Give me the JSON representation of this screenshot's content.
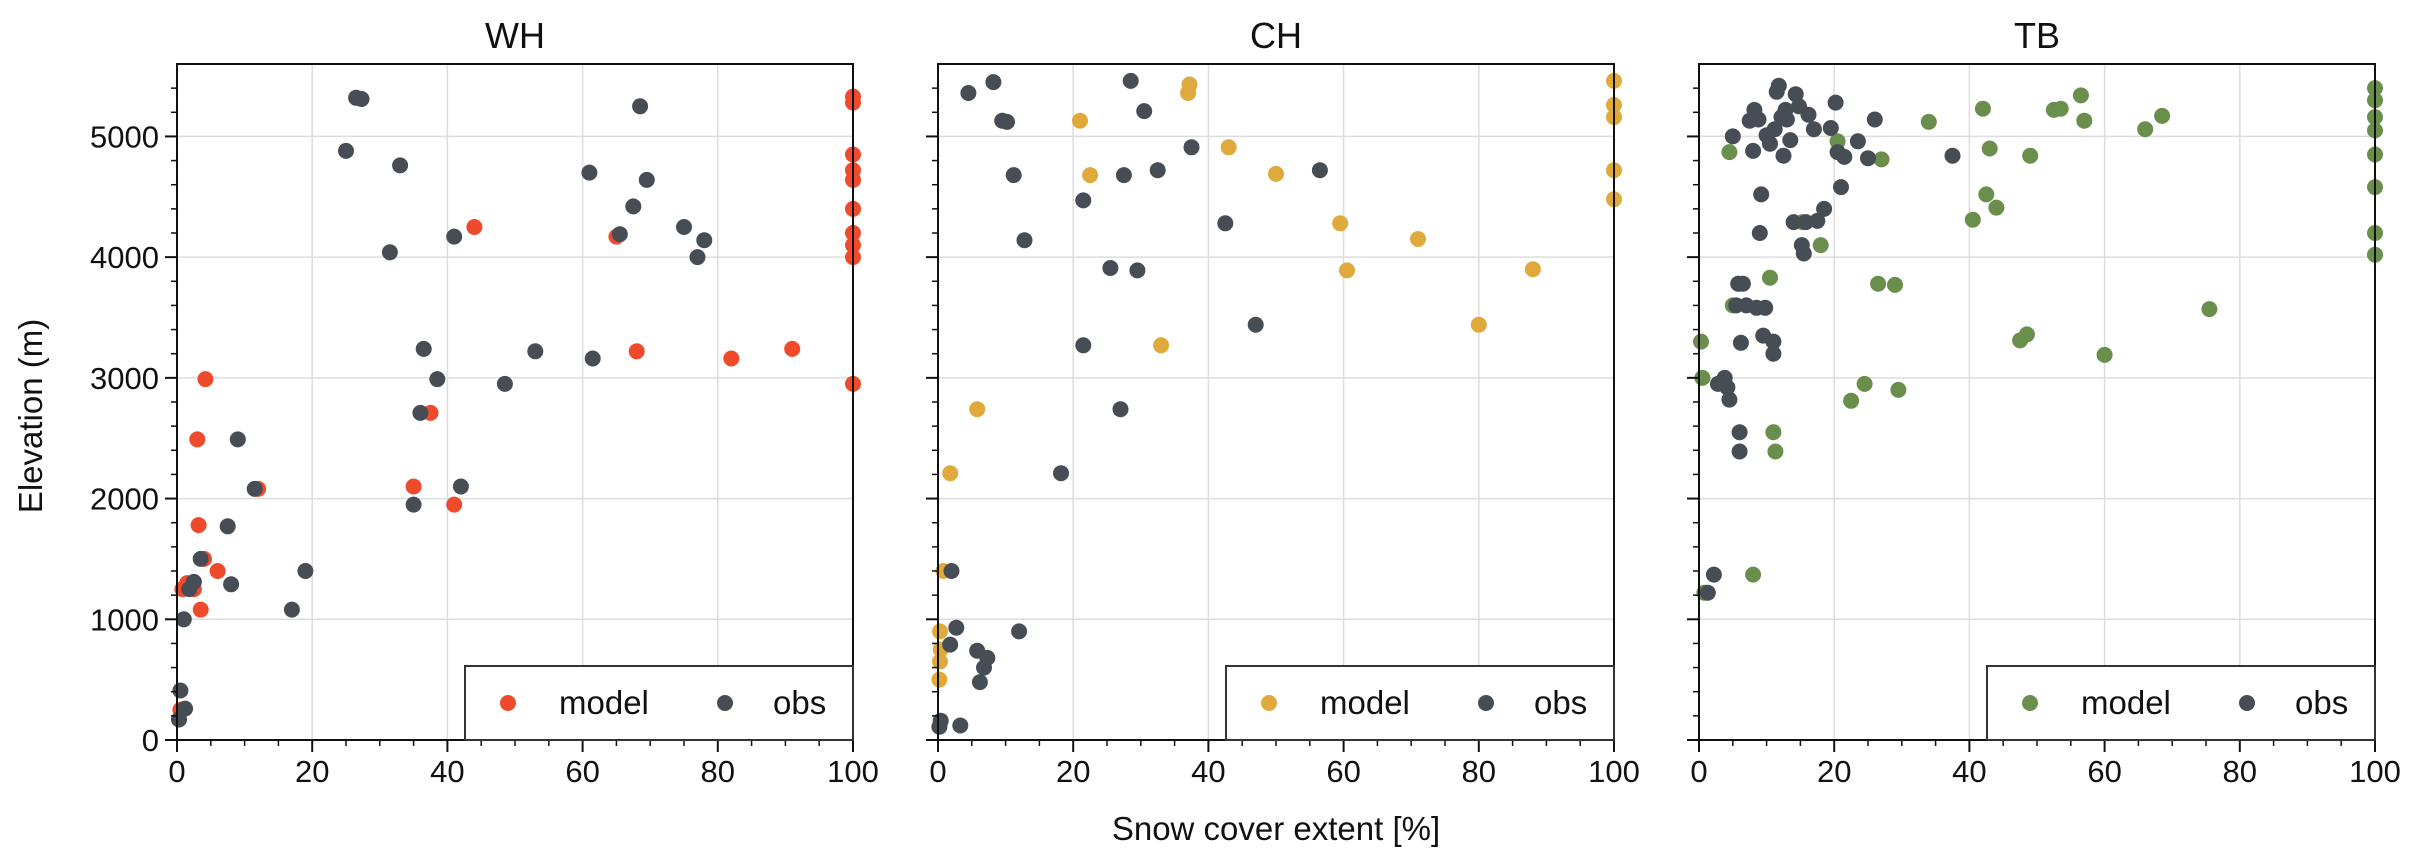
{
  "figure": {
    "xlabel": "Snow cover extent [%]",
    "ylabel": "Elevation (m)"
  },
  "legend": {
    "model_label": "model",
    "obs_label": "obs"
  },
  "colors": {
    "obs": "#474d55",
    "WH_model": "#f04a2c",
    "CH_model": "#e0a93b",
    "TB_model": "#6a8f4c",
    "grid": "#dddddd",
    "axis": "#111111"
  },
  "chart_data": [
    {
      "type": "scatter",
      "title": "WH",
      "xlim": [
        0,
        100
      ],
      "ylim": [
        0,
        5600
      ],
      "xticks": [
        0,
        20,
        40,
        60,
        80,
        100
      ],
      "yticks": [
        0,
        1000,
        2000,
        3000,
        4000,
        5000
      ],
      "grid": true,
      "legend_position": "lower-right",
      "series": [
        {
          "name": "model",
          "color": "#f04a2c",
          "points": [
            [
              0.5,
              250
            ],
            [
              0.8,
              1250
            ],
            [
              1.5,
              1300
            ],
            [
              2.5,
              1250
            ],
            [
              3.2,
              1780
            ],
            [
              3,
              2490
            ],
            [
              3.5,
              1080
            ],
            [
              4,
              1500
            ],
            [
              4.2,
              2990
            ],
            [
              6,
              1400
            ],
            [
              12,
              2080
            ],
            [
              35,
              2100
            ],
            [
              37.5,
              2710
            ],
            [
              41,
              1950
            ],
            [
              44,
              4250
            ],
            [
              65,
              4170
            ],
            [
              68,
              3220
            ],
            [
              82,
              3160
            ],
            [
              91,
              3240
            ],
            [
              100,
              5330
            ],
            [
              100,
              5280
            ],
            [
              100,
              4850
            ],
            [
              100,
              4720
            ],
            [
              100,
              4640
            ],
            [
              100,
              4400
            ],
            [
              100,
              4200
            ],
            [
              100,
              4100
            ],
            [
              100,
              4000
            ],
            [
              100,
              2950
            ]
          ]
        },
        {
          "name": "obs",
          "color": "#474d55",
          "points": [
            [
              0.3,
              170
            ],
            [
              0.5,
              410
            ],
            [
              1.2,
              260
            ],
            [
              1,
              1000
            ],
            [
              1.8,
              1250
            ],
            [
              2.5,
              1310
            ],
            [
              3.5,
              1500
            ],
            [
              7.5,
              1770
            ],
            [
              8,
              1290
            ],
            [
              9,
              2490
            ],
            [
              11.5,
              2080
            ],
            [
              17,
              1080
            ],
            [
              19,
              1400
            ],
            [
              25,
              4880
            ],
            [
              26.5,
              5320
            ],
            [
              27.3,
              5310
            ],
            [
              31.5,
              4040
            ],
            [
              33,
              4760
            ],
            [
              35,
              1950
            ],
            [
              36,
              2710
            ],
            [
              36.5,
              3240
            ],
            [
              38.5,
              2990
            ],
            [
              41,
              4170
            ],
            [
              42,
              2100
            ],
            [
              48.5,
              2950
            ],
            [
              53,
              3220
            ],
            [
              61,
              4700
            ],
            [
              61.5,
              3160
            ],
            [
              65.5,
              4190
            ],
            [
              67.5,
              4420
            ],
            [
              68.5,
              5250
            ],
            [
              69.5,
              4640
            ],
            [
              75,
              4250
            ],
            [
              77,
              4000
            ],
            [
              78,
              4140
            ]
          ]
        }
      ]
    },
    {
      "type": "scatter",
      "title": "CH",
      "xlim": [
        0,
        100
      ],
      "ylim": [
        0,
        5600
      ],
      "xticks": [
        0,
        20,
        40,
        60,
        80,
        100
      ],
      "yticks": [
        0,
        1000,
        2000,
        3000,
        4000,
        5000
      ],
      "grid": true,
      "legend_position": "lower-right",
      "series": [
        {
          "name": "model",
          "color": "#e0a93b",
          "points": [
            [
              0.2,
              500
            ],
            [
              0.3,
              650
            ],
            [
              0.4,
              750
            ],
            [
              0.3,
              900
            ],
            [
              0.8,
              1400
            ],
            [
              1.8,
              2210
            ],
            [
              5.8,
              2740
            ],
            [
              21,
              5130
            ],
            [
              22.5,
              4680
            ],
            [
              33,
              3270
            ],
            [
              37,
              5360
            ],
            [
              37.2,
              5430
            ],
            [
              43,
              4910
            ],
            [
              50,
              4690
            ],
            [
              59.5,
              4280
            ],
            [
              60.5,
              3890
            ],
            [
              71,
              4150
            ],
            [
              80,
              3440
            ],
            [
              88,
              3900
            ],
            [
              100,
              5460
            ],
            [
              100,
              5260
            ],
            [
              100,
              5160
            ],
            [
              100,
              4720
            ],
            [
              100,
              4480
            ]
          ]
        },
        {
          "name": "obs",
          "color": "#474d55",
          "points": [
            [
              0.2,
              110
            ],
            [
              0.4,
              160
            ],
            [
              1.8,
              790
            ],
            [
              2,
              1400
            ],
            [
              2.7,
              930
            ],
            [
              3.3,
              120
            ],
            [
              4.5,
              5360
            ],
            [
              5.8,
              740
            ],
            [
              6.2,
              480
            ],
            [
              6.8,
              600
            ],
            [
              7.3,
              680
            ],
            [
              8.2,
              5450
            ],
            [
              9.5,
              5130
            ],
            [
              10.2,
              5120
            ],
            [
              11.2,
              4680
            ],
            [
              12,
              900
            ],
            [
              12.8,
              4140
            ],
            [
              18.2,
              2210
            ],
            [
              21.5,
              4470
            ],
            [
              21.5,
              3270
            ],
            [
              25.5,
              3910
            ],
            [
              27,
              2740
            ],
            [
              27.5,
              4680
            ],
            [
              28.5,
              5460
            ],
            [
              29.5,
              3890
            ],
            [
              30.5,
              5210
            ],
            [
              32.5,
              4720
            ],
            [
              37.5,
              4910
            ],
            [
              42.5,
              4280
            ],
            [
              47,
              3440
            ],
            [
              56.5,
              4720
            ]
          ]
        }
      ]
    },
    {
      "type": "scatter",
      "title": "TB",
      "xlim": [
        0,
        100
      ],
      "ylim": [
        0,
        5600
      ],
      "xticks": [
        0,
        20,
        40,
        60,
        80,
        100
      ],
      "yticks": [
        0,
        1000,
        2000,
        3000,
        4000,
        5000
      ],
      "grid": true,
      "legend_position": "lower-right",
      "series": [
        {
          "name": "model",
          "color": "#6a8f4c",
          "points": [
            [
              0.3,
              3300
            ],
            [
              0.5,
              3000
            ],
            [
              0.8,
              1220
            ],
            [
              8,
              1370
            ],
            [
              4.5,
              4870
            ],
            [
              5,
              3600
            ],
            [
              10.5,
              3830
            ],
            [
              11,
              2550
            ],
            [
              11.3,
              2390
            ],
            [
              15.3,
              4290
            ],
            [
              18,
              4100
            ],
            [
              20.5,
              4960
            ],
            [
              22.5,
              2810
            ],
            [
              24.5,
              2950
            ],
            [
              26.5,
              3780
            ],
            [
              27,
              4810
            ],
            [
              29,
              3770
            ],
            [
              29.5,
              2900
            ],
            [
              34,
              5120
            ],
            [
              40.5,
              4310
            ],
            [
              42,
              5230
            ],
            [
              42.5,
              4520
            ],
            [
              43,
              4900
            ],
            [
              44,
              4410
            ],
            [
              47.5,
              3310
            ],
            [
              48.5,
              3360
            ],
            [
              49,
              4840
            ],
            [
              52.5,
              5220
            ],
            [
              53.5,
              5230
            ],
            [
              56.5,
              5340
            ],
            [
              57,
              5130
            ],
            [
              60,
              3190
            ],
            [
              66,
              5060
            ],
            [
              68.5,
              5170
            ],
            [
              75.5,
              3570
            ],
            [
              100,
              5400
            ],
            [
              100,
              5300
            ],
            [
              100,
              5160
            ],
            [
              100,
              5050
            ],
            [
              100,
              4850
            ],
            [
              100,
              4580
            ],
            [
              100,
              4200
            ],
            [
              100,
              4020
            ]
          ]
        },
        {
          "name": "obs",
          "color": "#474d55",
          "points": [
            [
              1.3,
              1220
            ],
            [
              2.2,
              1370
            ],
            [
              2.8,
              2950
            ],
            [
              3.8,
              3000
            ],
            [
              4.2,
              2920
            ],
            [
              4.5,
              2820
            ],
            [
              5,
              5000
            ],
            [
              5.5,
              3600
            ],
            [
              5.8,
              3780
            ],
            [
              6.2,
              3290
            ],
            [
              6.5,
              3780
            ],
            [
              6,
              2550
            ],
            [
              6,
              2390
            ],
            [
              7,
              3600
            ],
            [
              7.5,
              5130
            ],
            [
              8,
              4880
            ],
            [
              8.2,
              5220
            ],
            [
              8.5,
              3580
            ],
            [
              8.8,
              5140
            ],
            [
              9,
              4200
            ],
            [
              9.2,
              4520
            ],
            [
              9.5,
              3350
            ],
            [
              9.8,
              3580
            ],
            [
              10,
              5010
            ],
            [
              10.5,
              4940
            ],
            [
              11,
              3300
            ],
            [
              11,
              3200
            ],
            [
              11.2,
              5060
            ],
            [
              11.5,
              5370
            ],
            [
              11.8,
              5420
            ],
            [
              12.2,
              5160
            ],
            [
              12.5,
              4840
            ],
            [
              12.8,
              5220
            ],
            [
              13,
              5140
            ],
            [
              13.5,
              4970
            ],
            [
              14,
              4290
            ],
            [
              14.3,
              5350
            ],
            [
              14.8,
              5250
            ],
            [
              15.2,
              4100
            ],
            [
              15.5,
              4030
            ],
            [
              15.8,
              4290
            ],
            [
              16.2,
              5180
            ],
            [
              17,
              5060
            ],
            [
              17.5,
              4300
            ],
            [
              18.5,
              4400
            ],
            [
              19.5,
              5070
            ],
            [
              20.2,
              5280
            ],
            [
              20.5,
              4870
            ],
            [
              21,
              4580
            ],
            [
              21.5,
              4830
            ],
            [
              23.5,
              4960
            ],
            [
              25,
              4820
            ],
            [
              26,
              5140
            ],
            [
              37.5,
              4840
            ]
          ]
        }
      ]
    }
  ]
}
